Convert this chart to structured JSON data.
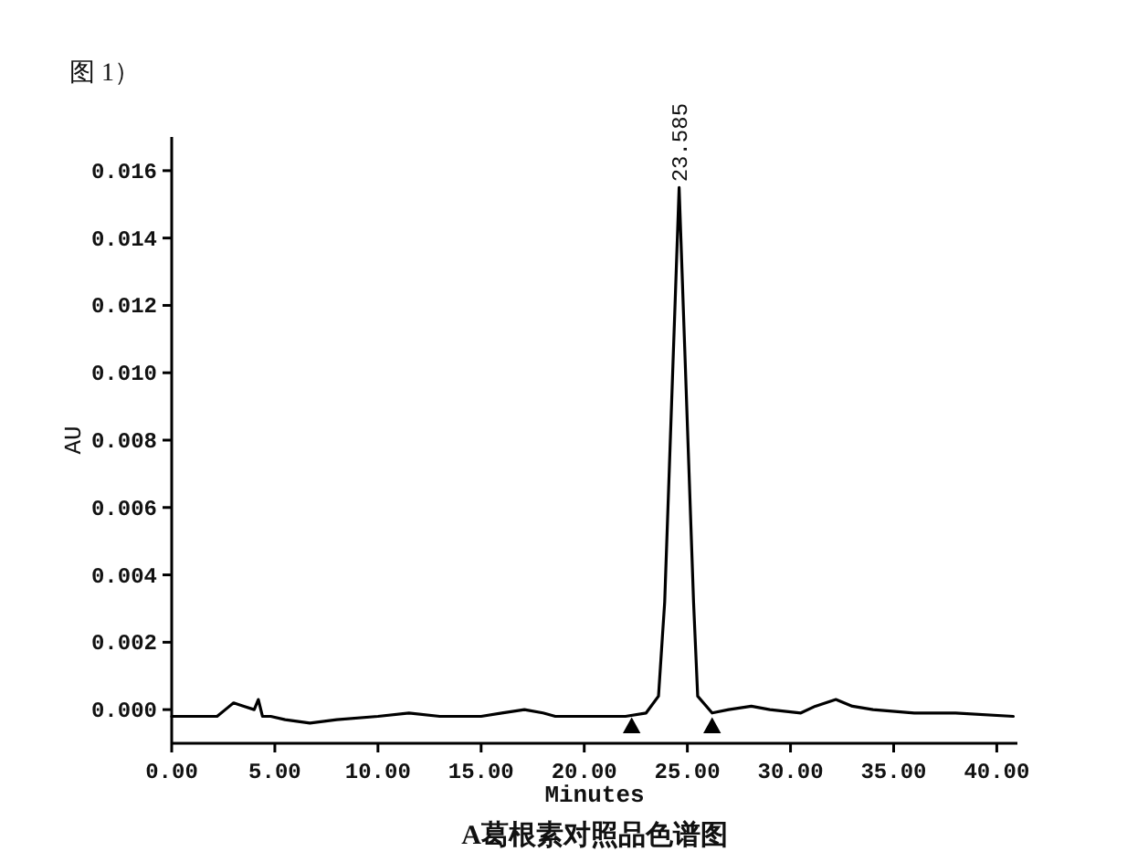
{
  "chart_data": {
    "type": "line",
    "title": "图 1）",
    "xlabel": "Minutes",
    "ylabel": "AU",
    "xlim": [
      0,
      41
    ],
    "xticks": [
      {
        "value": 0,
        "label": "0.00"
      },
      {
        "value": 5,
        "label": "5.00"
      },
      {
        "value": 10,
        "label": "10.00"
      },
      {
        "value": 15,
        "label": "15.00"
      },
      {
        "value": 20,
        "label": "20.00"
      },
      {
        "value": 25,
        "label": "25.00"
      },
      {
        "value": 30,
        "label": "30.00"
      },
      {
        "value": 35,
        "label": "35.00"
      },
      {
        "value": 40,
        "label": "40.00"
      }
    ],
    "ylim": [
      -0.001,
      0.017
    ],
    "yticks": [
      {
        "value": 0,
        "label": "0.000"
      },
      {
        "value": 0.002,
        "label": "0.002"
      },
      {
        "value": 0.004,
        "label": "0.004"
      },
      {
        "value": 0.006,
        "label": "0.006"
      },
      {
        "value": 0.008,
        "label": "0.008"
      },
      {
        "value": 0.01,
        "label": "0.010"
      },
      {
        "value": 0.012,
        "label": "0.012"
      },
      {
        "value": 0.014,
        "label": "0.014"
      },
      {
        "value": 0.016,
        "label": "0.016"
      }
    ],
    "series": [
      {
        "color": "#000000",
        "line_style": "solid",
        "x": [
          0,
          1.5,
          2.2,
          2.6,
          3.0,
          3.5,
          4.0,
          4.2,
          4.4,
          4.8,
          5.5,
          6.7,
          8.0,
          10.0,
          11.5,
          13.0,
          15.0,
          16.0,
          17.1,
          18.0,
          18.6,
          20.0,
          22.0,
          23.0,
          23.6,
          23.9,
          24.6,
          25.3,
          25.5,
          26.2,
          27.0,
          28.1,
          29.0,
          30.5,
          31.2,
          32.2,
          33.0,
          34.0,
          36.0,
          38.0,
          40.8
        ],
        "values": [
          -0.0002,
          -0.0002,
          -0.0002,
          0.0,
          0.0002,
          0.0001,
          0.0,
          0.0003,
          -0.0002,
          -0.0002,
          -0.0003,
          -0.0004,
          -0.0003,
          -0.0002,
          -0.0001,
          -0.0002,
          -0.0002,
          -0.0001,
          0.0,
          -0.0001,
          -0.0002,
          -0.0002,
          -0.0002,
          -0.0001,
          0.0004,
          0.0032,
          0.0155,
          0.0032,
          0.0004,
          -0.0001,
          0.0,
          0.0001,
          0.0,
          -0.0001,
          0.0001,
          0.0003,
          0.0001,
          0.0,
          -0.0001,
          -0.0001,
          -0.0002
        ]
      },
      {
        "type": "scatter",
        "color": "#000000",
        "marker": "triangle",
        "x": [
          22.3,
          26.2
        ],
        "values": [
          -0.0005,
          -0.0005
        ]
      }
    ],
    "annotations": [
      {
        "text": "23.585",
        "x": 24.6,
        "y": 0.0155
      },
      "A葛根素对照品色谱图"
    ]
  }
}
